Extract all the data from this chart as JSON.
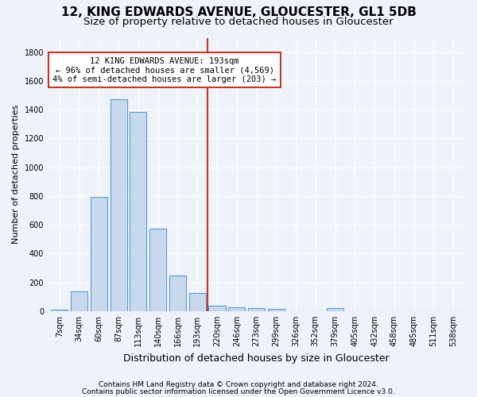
{
  "title1": "12, KING EDWARDS AVENUE, GLOUCESTER, GL1 5DB",
  "title2": "Size of property relative to detached houses in Gloucester",
  "xlabel": "Distribution of detached houses by size in Gloucester",
  "ylabel": "Number of detached properties",
  "bar_labels": [
    "7sqm",
    "34sqm",
    "60sqm",
    "87sqm",
    "113sqm",
    "140sqm",
    "166sqm",
    "193sqm",
    "220sqm",
    "246sqm",
    "273sqm",
    "299sqm",
    "326sqm",
    "352sqm",
    "379sqm",
    "405sqm",
    "432sqm",
    "458sqm",
    "485sqm",
    "511sqm",
    "538sqm"
  ],
  "bar_values": [
    10,
    140,
    795,
    1475,
    1385,
    575,
    248,
    125,
    38,
    28,
    20,
    15,
    0,
    0,
    20,
    0,
    0,
    0,
    0,
    0,
    0
  ],
  "bar_color": "#c8d9ed",
  "bar_edge_color": "#5b9bd5",
  "vline_x": 7.5,
  "vline_color": "#c0392b",
  "annotation_text": "12 KING EDWARDS AVENUE: 193sqm\n← 96% of detached houses are smaller (4,569)\n4% of semi-detached houses are larger (203) →",
  "annotation_box_color": "white",
  "annotation_box_edge": "#c0392b",
  "ylim": [
    0,
    1900
  ],
  "yticks": [
    0,
    200,
    400,
    600,
    800,
    1000,
    1200,
    1400,
    1600,
    1800
  ],
  "footer1": "Contains HM Land Registry data © Crown copyright and database right 2024.",
  "footer2": "Contains public sector information licensed under the Open Government Licence v3.0.",
  "bg_color": "#eef2f9",
  "grid_color": "white",
  "title1_fontsize": 11,
  "title2_fontsize": 9.5,
  "ann_fontsize": 7.5,
  "ylabel_fontsize": 8,
  "xlabel_fontsize": 9,
  "tick_fontsize": 7,
  "footer_fontsize": 6.5
}
